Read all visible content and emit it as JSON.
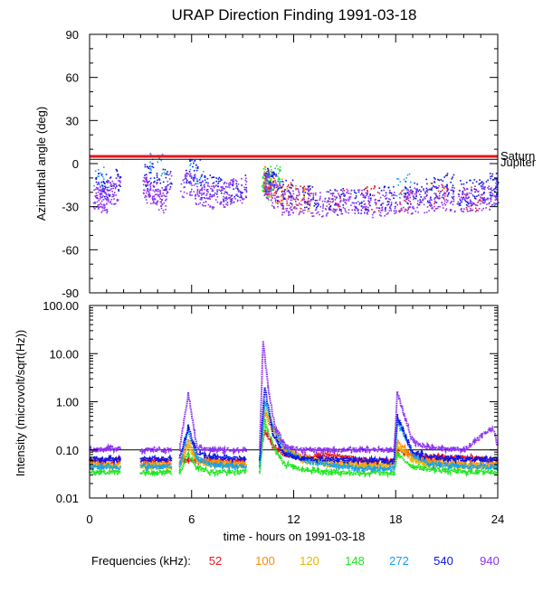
{
  "title": "URAP Direction Finding  1991-03-18",
  "legend": {
    "label": "Frequencies (kHz):",
    "items": [
      {
        "label": "52",
        "color": "#e8141e"
      },
      {
        "label": "100",
        "color": "#ff8c00"
      },
      {
        "label": "120",
        "color": "#e6b400"
      },
      {
        "label": "148",
        "color": "#1ee61e"
      },
      {
        "label": "272",
        "color": "#14a0f0"
      },
      {
        "label": "540",
        "color": "#0a14e6"
      },
      {
        "label": "940",
        "color": "#8c32f0"
      }
    ]
  },
  "chart_data": [
    {
      "type": "scatter",
      "ylabel": "Azimuthal angle (deg)",
      "xlim": [
        0,
        24
      ],
      "ylim": [
        -90,
        90
      ],
      "yticks": [
        "90",
        "60",
        "30",
        "0",
        "-30",
        "-60",
        "-90"
      ],
      "ytick_values": [
        90,
        60,
        30,
        0,
        -30,
        -60,
        -90
      ],
      "reference_lines": [
        {
          "label": "Saturn",
          "y": 5,
          "color": "#e8141e"
        },
        {
          "label": "Jupiter",
          "y": 3,
          "color": "#000000"
        }
      ],
      "data_gaps": [
        [
          1.8,
          3.0
        ],
        [
          4.8,
          5.3
        ],
        [
          9.2,
          10.0
        ]
      ],
      "series": [
        {
          "frequency": "52",
          "x": [
            10.2,
            10.4,
            10.6,
            11.0,
            12.0,
            14.0,
            16.0,
            18.0,
            20.0,
            22.0,
            24.0
          ],
          "y": [
            -15,
            -12,
            -18,
            -22,
            -24,
            -26,
            -24,
            -25,
            -22,
            -24,
            -20
          ]
        },
        {
          "frequency": "100",
          "x": [
            10.2,
            10.4,
            10.8,
            11.5,
            12.5
          ],
          "y": [
            -10,
            -14,
            -18,
            -22,
            -24
          ]
        },
        {
          "frequency": "148",
          "x": [
            10.1,
            10.3,
            10.5,
            10.7
          ],
          "y": [
            -12,
            -16,
            -10,
            -8
          ]
        },
        {
          "frequency": "272",
          "x": [
            0.2,
            3.5,
            5.8,
            10.2,
            18.0,
            23.8
          ],
          "y": [
            -10,
            0,
            -5,
            -10,
            -15,
            -20
          ]
        },
        {
          "frequency": "540",
          "x": [
            0.3,
            1.2,
            3.2,
            4.0,
            5.6,
            6.5,
            7.5,
            8.5,
            10.3,
            11.0,
            12.5,
            14.0,
            15.5,
            17.0,
            18.5,
            19.5,
            20.5,
            21.5,
            22.5,
            23.5
          ],
          "y": [
            -15,
            -10,
            -8,
            -12,
            -5,
            -15,
            -18,
            -16,
            -12,
            -20,
            -24,
            -25,
            -26,
            -24,
            -20,
            -18,
            -15,
            -20,
            -18,
            -15
          ]
        },
        {
          "frequency": "940",
          "x": [
            0.2,
            0.6,
            1.0,
            1.5,
            3.1,
            3.5,
            4.0,
            4.5,
            5.5,
            6.2,
            6.8,
            7.5,
            8.2,
            9.0,
            10.2,
            10.6,
            11.2,
            12.0,
            13.0,
            14.0,
            15.0,
            16.0,
            17.0,
            18.2,
            19.0,
            20.0,
            21.0,
            22.0,
            23.0,
            23.8
          ],
          "y": [
            -22,
            -25,
            -20,
            -18,
            -18,
            -20,
            -25,
            -15,
            -15,
            -20,
            -22,
            -21,
            -19,
            -18,
            -15,
            -22,
            -27,
            -26,
            -28,
            -27,
            -26,
            -28,
            -27,
            -26,
            -25,
            -24,
            -25,
            -24,
            -23,
            -20
          ]
        }
      ]
    },
    {
      "type": "line",
      "xlabel": "time - hours on 1991-03-18",
      "ylabel": "Intensity (microvolt/sqrt(Hz))",
      "xlim": [
        0,
        24
      ],
      "xticks": [
        "0",
        "6",
        "12",
        "18",
        "24"
      ],
      "xtick_values": [
        0,
        6,
        12,
        18,
        24
      ],
      "ylim": [
        0.01,
        100
      ],
      "yscale": "log",
      "yticks": [
        "100.00",
        "10.00",
        "1.00",
        "0.10",
        "0.01"
      ],
      "ytick_values": [
        100,
        10,
        1,
        0.1,
        0.01
      ],
      "reference_line": 0.1,
      "data_gaps": [
        [
          1.8,
          3.0
        ],
        [
          4.8,
          5.3
        ],
        [
          9.2,
          10.0
        ]
      ],
      "series": [
        {
          "frequency": "52",
          "x": [
            0,
            1.8,
            10.0,
            10.3,
            10.8,
            11.5,
            12.5,
            14.0,
            16.0,
            17.9,
            18.1,
            19.0,
            20.0,
            22.0,
            24.0
          ],
          "y": [
            0.06,
            0.06,
            0.06,
            0.25,
            0.12,
            0.08,
            0.07,
            0.08,
            0.06,
            0.06,
            0.1,
            0.08,
            0.07,
            0.07,
            0.06
          ]
        },
        {
          "frequency": "100",
          "x": [
            0,
            1.8,
            3.0,
            4.8,
            5.3,
            5.8,
            6.3,
            7.0,
            9.2,
            10.0,
            10.3,
            10.8,
            11.5,
            12.5,
            14.0,
            16.0,
            17.9,
            18.1,
            19.0,
            20.0,
            22.0,
            24.0
          ],
          "y": [
            0.05,
            0.05,
            0.05,
            0.05,
            0.05,
            0.15,
            0.07,
            0.06,
            0.05,
            0.05,
            0.6,
            0.25,
            0.1,
            0.07,
            0.06,
            0.05,
            0.05,
            0.15,
            0.07,
            0.06,
            0.05,
            0.05
          ]
        },
        {
          "frequency": "120",
          "x": [
            0,
            1.8,
            3.0,
            4.8,
            5.3,
            5.8,
            6.3,
            7.0,
            9.2,
            10.0,
            10.3,
            10.8,
            11.5,
            12.5,
            14.0,
            16.0,
            17.9,
            18.1,
            19.0,
            20.0,
            22.0,
            24.0
          ],
          "y": [
            0.045,
            0.045,
            0.045,
            0.045,
            0.045,
            0.12,
            0.06,
            0.05,
            0.045,
            0.045,
            0.7,
            0.3,
            0.1,
            0.06,
            0.05,
            0.045,
            0.045,
            0.12,
            0.06,
            0.05,
            0.045,
            0.045
          ]
        },
        {
          "frequency": "148",
          "x": [
            0,
            1.8,
            3.0,
            4.8,
            5.3,
            5.8,
            6.3,
            7.0,
            9.2,
            10.0,
            10.3,
            10.8,
            11.5,
            12.5,
            14.0,
            16.0,
            17.9,
            18.1,
            19.0,
            20.0,
            22.0,
            24.0
          ],
          "y": [
            0.035,
            0.035,
            0.035,
            0.035,
            0.035,
            0.08,
            0.045,
            0.035,
            0.035,
            0.035,
            0.4,
            0.12,
            0.05,
            0.04,
            0.035,
            0.033,
            0.033,
            0.08,
            0.045,
            0.04,
            0.035,
            0.035
          ]
        },
        {
          "frequency": "272",
          "x": [
            0,
            1.8,
            3.0,
            4.8,
            5.3,
            5.8,
            6.3,
            7.0,
            9.2,
            10.0,
            10.3,
            10.8,
            11.5,
            12.5,
            14.0,
            16.0,
            17.9,
            18.1,
            19.0,
            20.0,
            22.0,
            24.0
          ],
          "y": [
            0.045,
            0.045,
            0.045,
            0.045,
            0.045,
            0.25,
            0.07,
            0.05,
            0.045,
            0.045,
            1.0,
            0.3,
            0.1,
            0.06,
            0.05,
            0.04,
            0.04,
            0.4,
            0.08,
            0.05,
            0.045,
            0.045
          ]
        },
        {
          "frequency": "540",
          "x": [
            0,
            1.8,
            3.0,
            4.8,
            5.3,
            5.8,
            6.3,
            7.0,
            9.2,
            10.0,
            10.3,
            10.8,
            11.5,
            12.5,
            14.0,
            16.0,
            17.9,
            18.1,
            19.0,
            20.0,
            22.0,
            24.0
          ],
          "y": [
            0.065,
            0.065,
            0.065,
            0.065,
            0.065,
            0.3,
            0.09,
            0.07,
            0.065,
            0.065,
            2.0,
            0.2,
            0.08,
            0.065,
            0.065,
            0.06,
            0.06,
            0.5,
            0.09,
            0.07,
            0.065,
            0.065
          ]
        },
        {
          "frequency": "940",
          "x": [
            0,
            1.8,
            3.0,
            4.8,
            5.3,
            5.8,
            6.3,
            7.0,
            9.2,
            10.0,
            10.2,
            10.5,
            10.9,
            11.5,
            12.5,
            14.0,
            16.0,
            17.9,
            18.1,
            19.0,
            20.0,
            22.0,
            23.7,
            24.0
          ],
          "y": [
            0.1,
            0.11,
            0.1,
            0.1,
            0.1,
            1.5,
            0.12,
            0.1,
            0.1,
            0.1,
            18.0,
            2.0,
            0.3,
            0.12,
            0.1,
            0.1,
            0.1,
            0.1,
            1.5,
            0.15,
            0.11,
            0.1,
            0.3,
            0.12
          ]
        }
      ]
    }
  ]
}
